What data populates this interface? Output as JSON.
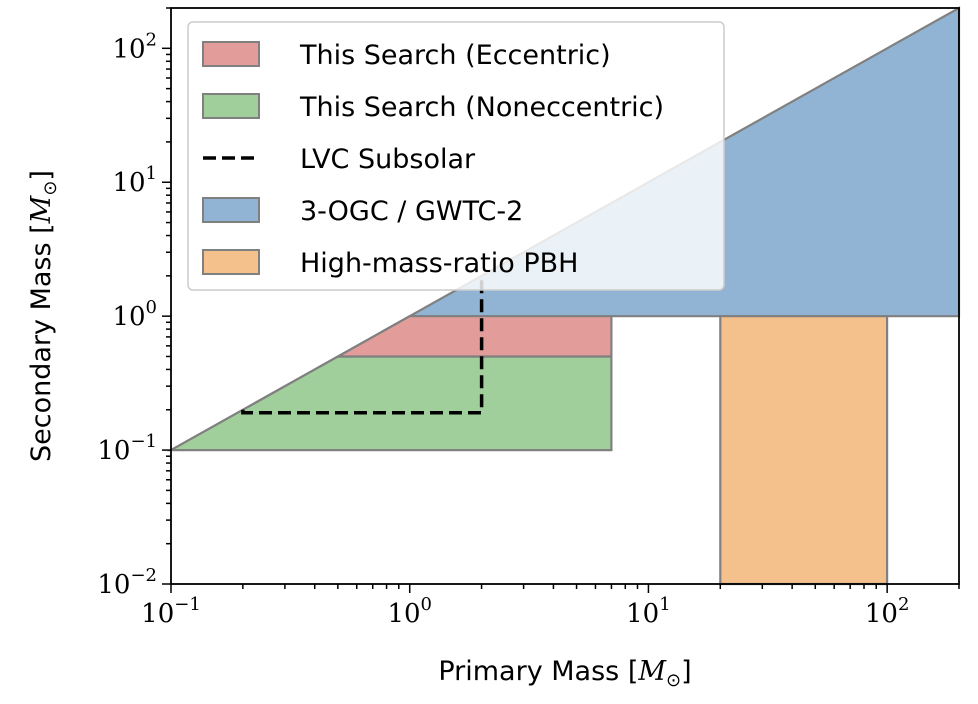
{
  "chart_data": {
    "type": "area",
    "title": "",
    "xlabel": {
      "text": "Primary Mass [",
      "math": "M",
      "sub": "⊙",
      "close": "]"
    },
    "ylabel": {
      "text": "Secondary Mass [",
      "math": "M",
      "sub": "⊙",
      "close": "]"
    },
    "xscale": "log",
    "yscale": "log",
    "xlim": [
      0.1,
      200
    ],
    "ylim": [
      0.01,
      200
    ],
    "x_ticks": [
      {
        "value": 0.1,
        "base": "10",
        "exp": "−1"
      },
      {
        "value": 1,
        "base": "10",
        "exp": "0"
      },
      {
        "value": 10,
        "base": "10",
        "exp": "1"
      },
      {
        "value": 100,
        "base": "10",
        "exp": "2"
      }
    ],
    "y_ticks": [
      {
        "value": 0.01,
        "base": "10",
        "exp": "−2"
      },
      {
        "value": 0.1,
        "base": "10",
        "exp": "−1"
      },
      {
        "value": 1,
        "base": "10",
        "exp": "0"
      },
      {
        "value": 10,
        "base": "10",
        "exp": "1"
      },
      {
        "value": 100,
        "base": "10",
        "exp": "2"
      }
    ],
    "grid": false,
    "legend_position": "top-left",
    "series": [
      {
        "name": "3-OGC / GWTC-2",
        "kind": "region",
        "color": "#92b4d4",
        "polygon": [
          [
            0.1,
            0.1
          ],
          [
            200,
            200
          ],
          [
            200,
            1
          ],
          [
            1,
            1
          ]
        ]
      },
      {
        "name": "High-mass-ratio PBH",
        "kind": "region",
        "color": "#f4c08c",
        "polygon": [
          [
            20,
            0.01
          ],
          [
            100,
            0.01
          ],
          [
            100,
            1
          ],
          [
            20,
            1
          ]
        ]
      },
      {
        "name": "This Search (Noneccentric)",
        "kind": "region",
        "color": "#a1cf9b",
        "polygon": [
          [
            0.1,
            0.1
          ],
          [
            7,
            0.1
          ],
          [
            7,
            0.5
          ],
          [
            0.5,
            0.5
          ]
        ]
      },
      {
        "name": "This Search (Eccentric)",
        "kind": "region",
        "color": "#e29c9a",
        "polygon": [
          [
            0.5,
            0.5
          ],
          [
            7,
            0.5
          ],
          [
            7,
            1
          ],
          [
            1,
            1
          ]
        ]
      },
      {
        "name": "LVC Subsolar",
        "kind": "line",
        "color": "#000000",
        "dash": "dashed",
        "points": [
          [
            0.2,
            0.2
          ],
          [
            0.2,
            0.19
          ],
          [
            2,
            0.19
          ],
          [
            2,
            2
          ]
        ]
      }
    ],
    "legend": [
      {
        "label": "This Search (Eccentric)",
        "swatch": "patch",
        "color": "#e29c9a"
      },
      {
        "label": "This Search (Noneccentric)",
        "swatch": "patch",
        "color": "#a1cf9b"
      },
      {
        "label": "LVC Subsolar",
        "swatch": "dash",
        "color": "#000000"
      },
      {
        "label": "3-OGC / GWTC-2",
        "swatch": "patch",
        "color": "#92b4d4"
      },
      {
        "label": "High-mass-ratio PBH",
        "swatch": "patch",
        "color": "#f4c08c"
      }
    ]
  }
}
